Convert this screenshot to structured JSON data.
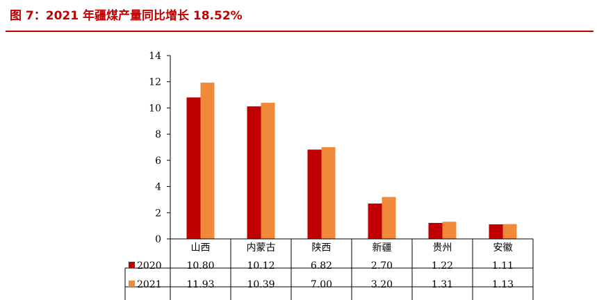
{
  "header": {
    "title": "图 7：2021 年疆煤产量同比增长 18.52%"
  },
  "colors": {
    "title": "#c00000",
    "s2020": "#c00000",
    "s2021": "#f08a3a"
  },
  "chart_data": {
    "type": "bar",
    "categories": [
      "山西",
      "内蒙古",
      "陕西",
      "新疆",
      "贵州",
      "安徽"
    ],
    "series": [
      {
        "name": "2020",
        "values": [
          10.8,
          10.12,
          6.82,
          2.7,
          1.22,
          1.11
        ],
        "labels": [
          "10.80",
          "10.12",
          "6.82",
          "2.70",
          "1.22",
          "1.11"
        ]
      },
      {
        "name": "2021",
        "values": [
          11.93,
          10.39,
          7.0,
          3.2,
          1.31,
          1.13
        ],
        "labels": [
          "11.93",
          "10.39",
          "7.00",
          "3.20",
          "1.31",
          "1.13"
        ]
      }
    ],
    "ylim": [
      0,
      14
    ],
    "yticks": [
      0,
      2,
      4,
      6,
      8,
      10,
      12,
      14
    ],
    "data_table": true
  }
}
